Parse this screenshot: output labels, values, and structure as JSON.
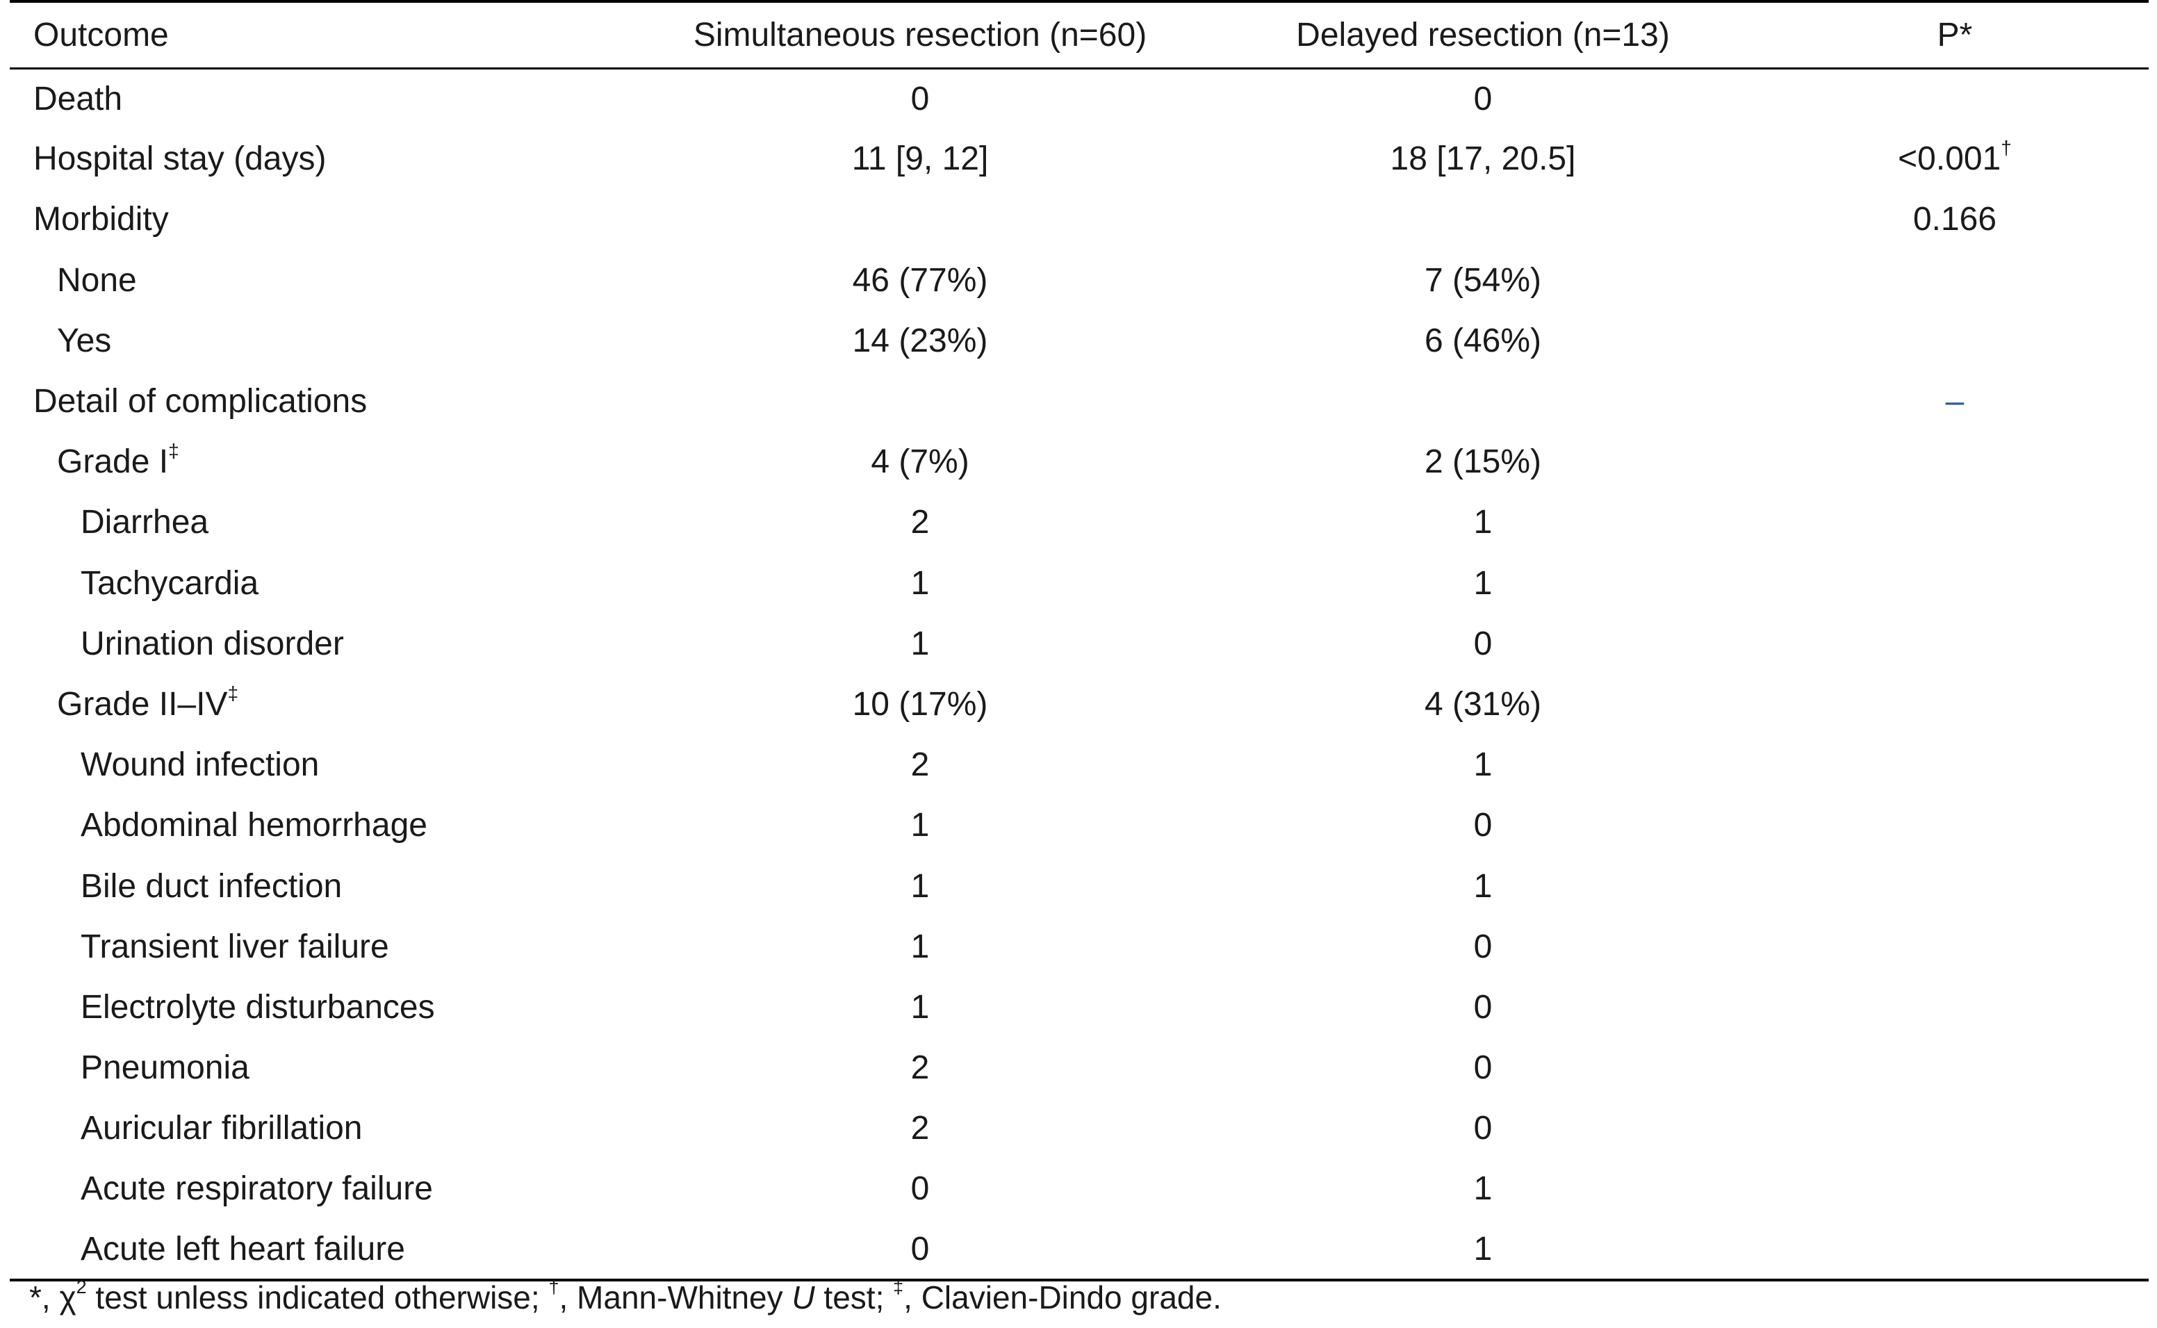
{
  "table": {
    "headers": {
      "outcome": "Outcome",
      "simultaneous": "Simultaneous resection (n=60)",
      "delayed": "Delayed resection (n=13)",
      "p": "P",
      "p_mark": "*"
    },
    "rows": [
      {
        "label": "Death",
        "label_mark": "",
        "sim": "0",
        "del": "0",
        "p": "",
        "p_mark": ""
      },
      {
        "label": "Hospital stay (days)",
        "label_mark": "",
        "sim": "11 [9, 12]",
        "del": "18 [17, 20.5]",
        "p": "<0.001",
        "p_mark": "†"
      },
      {
        "label": "Morbidity",
        "label_mark": "",
        "sim": "",
        "del": "",
        "p": "0.166",
        "p_mark": ""
      },
      {
        "label": "None",
        "label_mark": "",
        "sim": "46 (77%)",
        "del": "7 (54%)",
        "p": "",
        "p_mark": ""
      },
      {
        "label": "Yes",
        "label_mark": "",
        "sim": "14 (23%)",
        "del": "6 (46%)",
        "p": "",
        "p_mark": ""
      },
      {
        "label": "Detail of complications",
        "label_mark": "",
        "sim": "",
        "del": "",
        "p": "–",
        "p_mark": ""
      },
      {
        "label": "Grade I",
        "label_mark": "‡",
        "sim": "4 (7%)",
        "del": "2 (15%)",
        "p": "",
        "p_mark": ""
      },
      {
        "label": "Diarrhea",
        "label_mark": "",
        "sim": "2",
        "del": "1",
        "p": "",
        "p_mark": ""
      },
      {
        "label": "Tachycardia",
        "label_mark": "",
        "sim": "1",
        "del": "1",
        "p": "",
        "p_mark": ""
      },
      {
        "label": "Urination disorder",
        "label_mark": "",
        "sim": "1",
        "del": "0",
        "p": "",
        "p_mark": ""
      },
      {
        "label": "Grade II–IV",
        "label_mark": "‡",
        "sim": "10 (17%)",
        "del": "4 (31%)",
        "p": "",
        "p_mark": ""
      },
      {
        "label": "Wound infection",
        "label_mark": "",
        "sim": "2",
        "del": "1",
        "p": "",
        "p_mark": ""
      },
      {
        "label": "Abdominal hemorrhage",
        "label_mark": "",
        "sim": "1",
        "del": "0",
        "p": "",
        "p_mark": ""
      },
      {
        "label": "Bile duct infection",
        "label_mark": "",
        "sim": "1",
        "del": "1",
        "p": "",
        "p_mark": ""
      },
      {
        "label": "Transient liver failure",
        "label_mark": "",
        "sim": "1",
        "del": "0",
        "p": "",
        "p_mark": ""
      },
      {
        "label": "Electrolyte disturbances",
        "label_mark": "",
        "sim": "1",
        "del": "0",
        "p": "",
        "p_mark": ""
      },
      {
        "label": "Pneumonia",
        "label_mark": "",
        "sim": "2",
        "del": "0",
        "p": "",
        "p_mark": ""
      },
      {
        "label": "Auricular fibrillation",
        "label_mark": "",
        "sim": "2",
        "del": "0",
        "p": "",
        "p_mark": ""
      },
      {
        "label": "Acute respiratory failure",
        "label_mark": "",
        "sim": "0",
        "del": "1",
        "p": "",
        "p_mark": ""
      },
      {
        "label": "Acute left heart failure",
        "label_mark": "",
        "sim": "0",
        "del": "1",
        "p": "",
        "p_mark": ""
      }
    ]
  },
  "footnote": {
    "mark1": "*",
    "text1": ", χ",
    "sup1": "2",
    "text2": " test unless indicated otherwise; ",
    "mark2": "†",
    "text3": ", Mann-Whitney ",
    "italic": "U",
    "text4": " test; ",
    "mark3": "‡",
    "text5": ", Clavien-Dindo grade."
  }
}
